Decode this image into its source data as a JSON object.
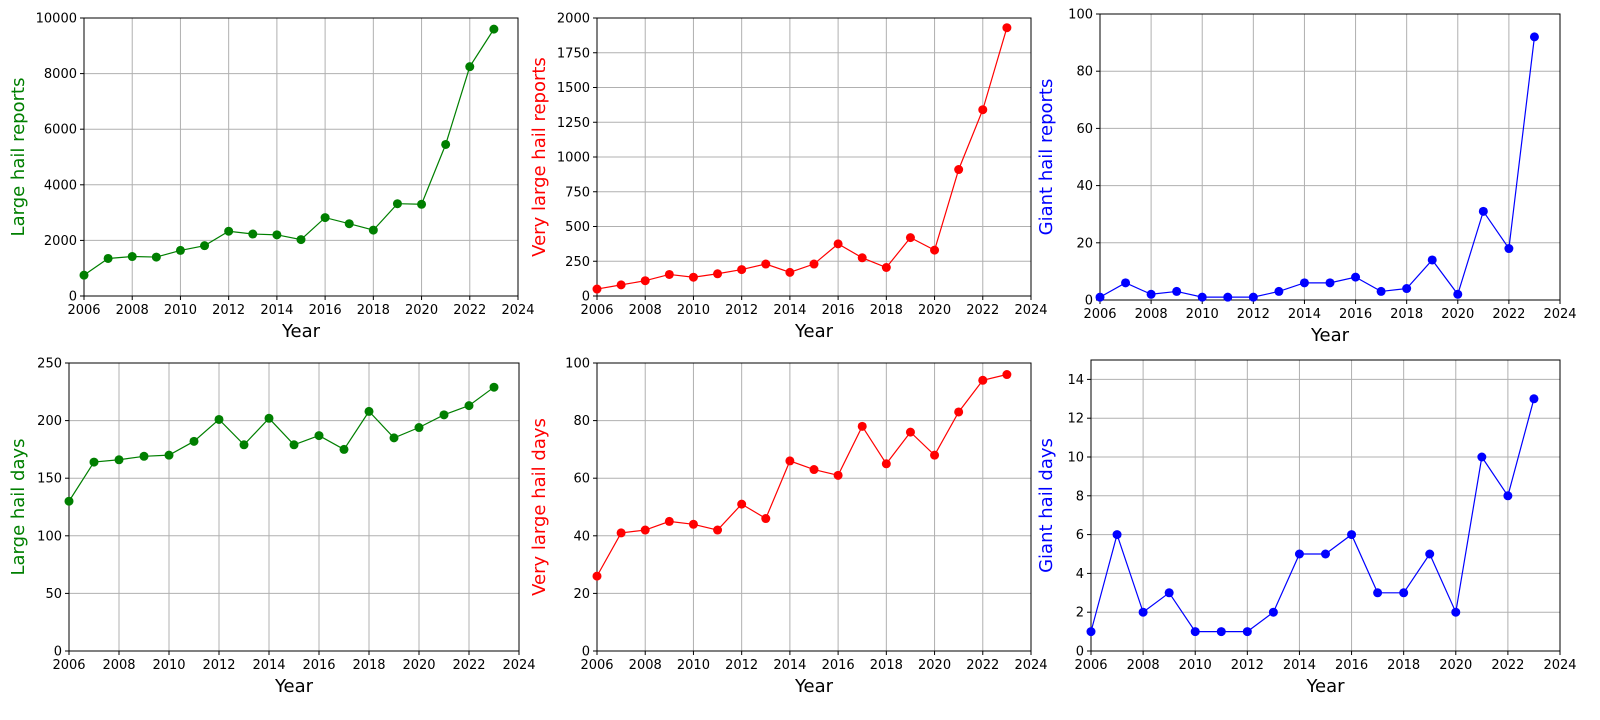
{
  "chart_data": [
    {
      "type": "line",
      "xlabel": "Year",
      "ylabel": "Large hail reports",
      "color": "#007f00",
      "xlim": [
        2006,
        2024
      ],
      "ylim": [
        0,
        10000
      ],
      "x_ticks": [
        2006,
        2008,
        2010,
        2012,
        2014,
        2016,
        2018,
        2020,
        2022,
        2024
      ],
      "y_ticks": [
        0,
        2000,
        4000,
        6000,
        8000,
        10000
      ],
      "grid": true,
      "x": [
        2006,
        2007,
        2008,
        2009,
        2010,
        2011,
        2012,
        2013,
        2014,
        2015,
        2016,
        2017,
        2018,
        2019,
        2020,
        2021,
        2022,
        2023
      ],
      "y": [
        750,
        1350,
        1420,
        1400,
        1640,
        1810,
        2330,
        2230,
        2200,
        2030,
        2820,
        2600,
        2370,
        3320,
        3300,
        5450,
        8250,
        9600
      ]
    },
    {
      "type": "line",
      "xlabel": "Year",
      "ylabel": "Very large hail reports",
      "color": "#ff0000",
      "xlim": [
        2006,
        2024
      ],
      "ylim": [
        0,
        2000
      ],
      "x_ticks": [
        2006,
        2008,
        2010,
        2012,
        2014,
        2016,
        2018,
        2020,
        2022,
        2024
      ],
      "y_ticks": [
        0,
        250,
        500,
        750,
        1000,
        1250,
        1500,
        1750,
        2000
      ],
      "grid": true,
      "x": [
        2006,
        2007,
        2008,
        2009,
        2010,
        2011,
        2012,
        2013,
        2014,
        2015,
        2016,
        2017,
        2018,
        2019,
        2020,
        2021,
        2022,
        2023
      ],
      "y": [
        50,
        80,
        110,
        155,
        135,
        160,
        190,
        230,
        170,
        230,
        375,
        275,
        205,
        420,
        330,
        910,
        1340,
        1930
      ]
    },
    {
      "type": "line",
      "xlabel": "Year",
      "ylabel": "Giant hail reports",
      "color": "#0000ff",
      "xlim": [
        2006,
        2024
      ],
      "ylim": [
        0,
        100
      ],
      "x_ticks": [
        2006,
        2008,
        2010,
        2012,
        2014,
        2016,
        2018,
        2020,
        2022,
        2024
      ],
      "y_ticks": [
        0,
        20,
        40,
        60,
        80,
        100
      ],
      "grid": true,
      "x": [
        2006,
        2007,
        2008,
        2009,
        2010,
        2011,
        2012,
        2013,
        2014,
        2015,
        2016,
        2017,
        2018,
        2019,
        2020,
        2021,
        2022,
        2023
      ],
      "y": [
        1,
        6,
        2,
        3,
        1,
        1,
        1,
        3,
        6,
        6,
        8,
        3,
        4,
        14,
        2,
        31,
        18,
        92
      ]
    },
    {
      "type": "line",
      "xlabel": "Year",
      "ylabel": "Large hail days",
      "color": "#007f00",
      "xlim": [
        2006,
        2024
      ],
      "ylim": [
        0,
        250
      ],
      "x_ticks": [
        2006,
        2008,
        2010,
        2012,
        2014,
        2016,
        2018,
        2020,
        2022,
        2024
      ],
      "y_ticks": [
        0,
        50,
        100,
        150,
        200,
        250
      ],
      "grid": true,
      "x": [
        2006,
        2007,
        2008,
        2009,
        2010,
        2011,
        2012,
        2013,
        2014,
        2015,
        2016,
        2017,
        2018,
        2019,
        2020,
        2021,
        2022,
        2023
      ],
      "y": [
        130,
        164,
        166,
        169,
        170,
        182,
        201,
        179,
        202,
        179,
        187,
        175,
        208,
        185,
        194,
        205,
        213,
        229
      ]
    },
    {
      "type": "line",
      "xlabel": "Year",
      "ylabel": "Very large hail days",
      "color": "#ff0000",
      "xlim": [
        2006,
        2024
      ],
      "ylim": [
        0,
        100
      ],
      "x_ticks": [
        2006,
        2008,
        2010,
        2012,
        2014,
        2016,
        2018,
        2020,
        2022,
        2024
      ],
      "y_ticks": [
        0,
        20,
        40,
        60,
        80,
        100
      ],
      "grid": true,
      "x": [
        2006,
        2007,
        2008,
        2009,
        2010,
        2011,
        2012,
        2013,
        2014,
        2015,
        2016,
        2017,
        2018,
        2019,
        2020,
        2021,
        2022,
        2023
      ],
      "y": [
        26,
        41,
        42,
        45,
        44,
        42,
        51,
        46,
        66,
        63,
        61,
        78,
        65,
        76,
        68,
        83,
        94,
        96
      ]
    },
    {
      "type": "line",
      "xlabel": "Year",
      "ylabel": "Giant hail days",
      "color": "#0000ff",
      "xlim": [
        2006,
        2024
      ],
      "ylim": [
        0,
        15
      ],
      "x_ticks": [
        2006,
        2008,
        2010,
        2012,
        2014,
        2016,
        2018,
        2020,
        2022,
        2024
      ],
      "y_ticks": [
        0,
        2,
        4,
        6,
        8,
        10,
        12,
        14
      ],
      "grid": true,
      "x": [
        2006,
        2007,
        2008,
        2009,
        2010,
        2011,
        2012,
        2013,
        2014,
        2015,
        2016,
        2017,
        2018,
        2019,
        2020,
        2021,
        2022,
        2023
      ],
      "y": [
        1,
        6,
        2,
        3,
        1,
        1,
        1,
        2,
        5,
        5,
        6,
        3,
        3,
        5,
        2,
        10,
        8,
        13
      ]
    }
  ]
}
